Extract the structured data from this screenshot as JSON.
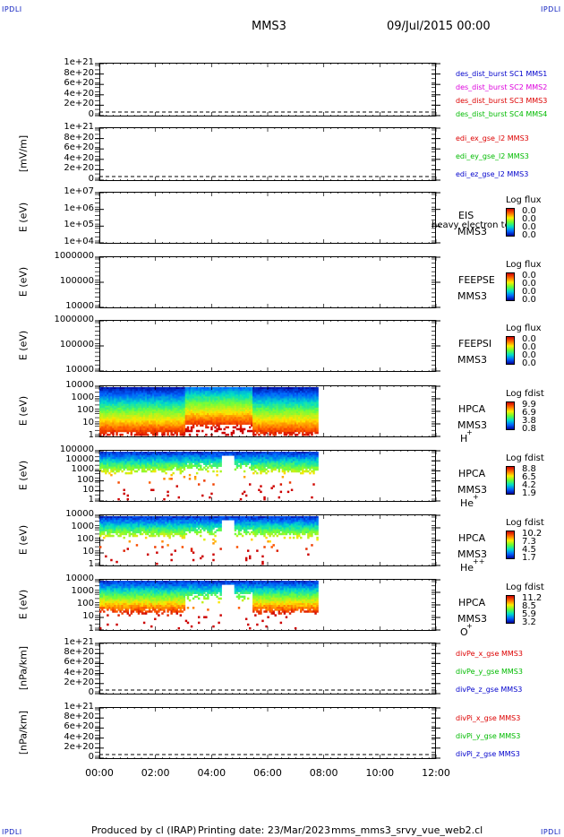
{
  "header": {
    "corner_label": "IPDLI",
    "spacecraft": "MMS3",
    "date": "09/Jul/2015 00:00"
  },
  "x_axis": {
    "ticks": [
      "00:00",
      "02:00",
      "04:00",
      "06:00",
      "08:00",
      "10:00",
      "12:00"
    ]
  },
  "footer": {
    "produced": "Produced by cl (IRAP)",
    "printing": "Printing date: 23/Mar/2023",
    "script": "mms_mms3_srvy_vue_web2.cl"
  },
  "colors": {
    "red": "#dd0000",
    "green": "#00bb00",
    "blue": "#0000cc",
    "magenta": "#dd00dd",
    "dashed": "#000000"
  },
  "chart_data": [
    {
      "id": "p1",
      "type": "line",
      "ylabel": "",
      "yticks": [
        "1e+21",
        "8e+20",
        "6e+20",
        "4e+20",
        "2e+20",
        "0"
      ],
      "ylim": [
        0,
        1e+21
      ],
      "series": [],
      "legend": [
        {
          "text": "des_dist_burst SC1 MMS1",
          "color": "#0000cc"
        },
        {
          "text": "des_dist_burst SC2 MMS2",
          "color": "#dd00dd"
        },
        {
          "text": "des_dist_burst SC3 MMS3",
          "color": "#dd0000"
        },
        {
          "text": "des_dist_burst SC4 MMS4",
          "color": "#00bb00"
        }
      ]
    },
    {
      "id": "p2",
      "type": "line",
      "ylabel": "[mV/m]",
      "yticks": [
        "1e+21",
        "8e+20",
        "6e+20",
        "4e+20",
        "2e+20",
        "0"
      ],
      "ylim": [
        0,
        1e+21
      ],
      "series": [],
      "legend": [
        {
          "text": "edi_ex_gse_l2 MMS3",
          "color": "#dd0000"
        },
        {
          "text": "edi_ey_gse_l2 MMS3",
          "color": "#00bb00"
        },
        {
          "text": "edi_ez_gse_l2 MMS3",
          "color": "#0000cc"
        }
      ]
    },
    {
      "id": "p3",
      "type": "heatmap",
      "ylabel": "E (eV)",
      "yticks": [
        "1e+07",
        "1e+06",
        "1e+05",
        "1e+04"
      ],
      "right_labels": [
        "EIS",
        "MMS3"
      ],
      "overlay": "heavy electron to",
      "cbar_title": "Log flux",
      "cbar_values": [
        "0.0",
        "0.0",
        "0.0",
        "0.0"
      ],
      "filled": false
    },
    {
      "id": "p4",
      "type": "heatmap",
      "ylabel": "E (eV)",
      "yticks": [
        "1000000",
        "100000",
        "10000"
      ],
      "right_labels": [
        "FEEPSE",
        "MMS3"
      ],
      "cbar_title": "Log flux",
      "cbar_values": [
        "0.0",
        "0.0",
        "0.0",
        "0.0"
      ],
      "filled": false
    },
    {
      "id": "p5",
      "type": "heatmap",
      "ylabel": "E (eV)",
      "yticks": [
        "1000000",
        "100000",
        "10000"
      ],
      "right_labels": [
        "FEEPSI",
        "MMS3"
      ],
      "cbar_title": "Log flux",
      "cbar_values": [
        "0.0",
        "0.0",
        "0.0",
        "0.0"
      ],
      "filled": false
    },
    {
      "id": "p6",
      "type": "heatmap",
      "ylabel": "E (eV)",
      "yticks": [
        "10000",
        "1000",
        "100",
        "10",
        "1"
      ],
      "right_labels": [
        "HPCA",
        "MMS3"
      ],
      "species": "H",
      "species_sup": "+",
      "cbar_title": "Log fdist",
      "cbar_values": [
        "9.9",
        "6.9",
        "3.8",
        "0.8"
      ],
      "filled": true,
      "data_end_hour": 7.8
    },
    {
      "id": "p7",
      "type": "heatmap",
      "ylabel": "E (eV)",
      "yticks": [
        "100000",
        "10000",
        "1000",
        "100",
        "10",
        "1"
      ],
      "right_labels": [
        "HPCA",
        "MMS3"
      ],
      "species": "He",
      "species_sup": "+",
      "cbar_title": "Log fdist",
      "cbar_values": [
        "8.8",
        "6.5",
        "4.2",
        "1.9"
      ],
      "filled": true,
      "data_end_hour": 7.8
    },
    {
      "id": "p8",
      "type": "heatmap",
      "ylabel": "E (eV)",
      "yticks": [
        "10000",
        "1000",
        "100",
        "10",
        "1"
      ],
      "right_labels": [
        "HPCA",
        "MMS3"
      ],
      "species": "He",
      "species_sup": "++",
      "cbar_title": "Log fdist",
      "cbar_values": [
        "10.2",
        "7.3",
        "4.5",
        "1.7"
      ],
      "filled": true,
      "data_end_hour": 7.8
    },
    {
      "id": "p9",
      "type": "heatmap",
      "ylabel": "E (eV)",
      "yticks": [
        "10000",
        "1000",
        "100",
        "10",
        "1"
      ],
      "right_labels": [
        "HPCA",
        "MMS3"
      ],
      "species": "O",
      "species_sup": "+",
      "cbar_title": "Log fdist",
      "cbar_values": [
        "11.2",
        "8.5",
        "5.9",
        "3.2"
      ],
      "filled": true,
      "data_end_hour": 7.8
    },
    {
      "id": "p10",
      "type": "line",
      "ylabel": "[nPa/km]",
      "yticks": [
        "1e+21",
        "8e+20",
        "6e+20",
        "4e+20",
        "2e+20",
        "0"
      ],
      "ylim": [
        0,
        1e+21
      ],
      "series": [],
      "legend": [
        {
          "text": "divPe_x_gse MMS3",
          "color": "#dd0000"
        },
        {
          "text": "divPe_y_gse MMS3",
          "color": "#00bb00"
        },
        {
          "text": "divPe_z_gse MMS3",
          "color": "#0000cc"
        }
      ]
    },
    {
      "id": "p11",
      "type": "line",
      "ylabel": "[nPa/km]",
      "yticks": [
        "1e+21",
        "8e+20",
        "6e+20",
        "4e+20",
        "2e+20",
        "0"
      ],
      "ylim": [
        0,
        1e+21
      ],
      "series": [],
      "legend": [
        {
          "text": "divPi_x_gse MMS3",
          "color": "#dd0000"
        },
        {
          "text": "divPi_y_gse MMS3",
          "color": "#00bb00"
        },
        {
          "text": "divPi_z_gse MMS3",
          "color": "#0000cc"
        }
      ]
    }
  ]
}
